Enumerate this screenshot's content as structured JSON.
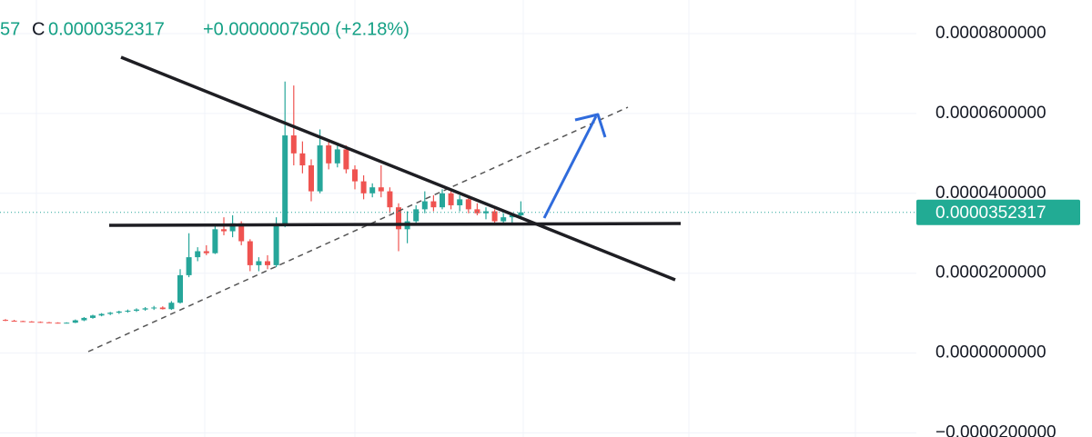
{
  "chart_data": {
    "type": "candlestick",
    "header_symbol_fragment": "57",
    "header_close_prefix": "C",
    "header_close": "0.0000352317",
    "header_change": "+0.0000007500 (+2.18%)",
    "up_color": "#26a69a",
    "down_color": "#ef5350",
    "grid": true,
    "ylim": [
      -2.10227e-05,
      8.84091e-05
    ],
    "yticks": [
      {
        "value": 8e-05,
        "label": "0.0000800000"
      },
      {
        "value": 6e-05,
        "label": "0.0000600000"
      },
      {
        "value": 4e-05,
        "label": "0.0000400000"
      },
      {
        "value": 2e-05,
        "label": "0.0000200000"
      },
      {
        "value": 0,
        "label": "0.0000000000"
      },
      {
        "value": -2e-05,
        "label": "−0.0000200000"
      }
    ],
    "last_price": {
      "value": 3.52317e-05,
      "label": "0.0000352317"
    },
    "open": [
      8.3e-06,
      8.1e-06,
      8e-06,
      7.9e-06,
      7.8e-06,
      7.7e-06,
      7.6e-06,
      7.5e-06,
      7.6e-06,
      8.2e-06,
      8.8e-06,
      9.4e-06,
      9.8e-06,
      1.01e-05,
      1.04e-05,
      1.06e-05,
      1.09e-05,
      1.12e-05,
      1.14e-05,
      1.1e-05,
      1.26e-05,
      1.95e-05,
      2.4e-05,
      2.55e-05,
      2.5e-05,
      3.1e-05,
      3.05e-05,
      3.25e-05,
      2.8e-05,
      2.2e-05,
      2.3e-05,
      2.2e-05,
      3.2e-05,
      5.45e-05,
      5e-05,
      4.7e-05,
      4.05e-05,
      5.2e-05,
      4.75e-05,
      5.1e-05,
      4.6e-05,
      4.3e-05,
      4e-05,
      4.15e-05,
      4.05e-05,
      3.65e-05,
      3.1e-05,
      3.3e-05,
      3.6e-05,
      3.8e-05,
      3.65e-05,
      4e-05,
      3.7e-05,
      3.85e-05,
      3.6e-05,
      3.5e-05,
      3.55e-05,
      3.3e-05,
      3.4e-05,
      3.44817e-05
    ],
    "high": [
      8.5e-06,
      8.3e-06,
      8.1e-06,
      8e-06,
      7.9e-06,
      7.8e-06,
      7.7e-06,
      7.7e-06,
      8.4e-06,
      9e-06,
      9.6e-06,
      1e-05,
      1.03e-05,
      1.06e-05,
      1.09e-05,
      1.12e-05,
      1.15e-05,
      1.18e-05,
      1.17e-05,
      1.3e-05,
      2.1e-05,
      3e-05,
      2.65e-05,
      2.7e-05,
      3.2e-05,
      3.4e-05,
      3.45e-05,
      3.3e-05,
      2.85e-05,
      2.4e-05,
      2.45e-05,
      3.4e-05,
      6.8e-05,
      6.7e-05,
      5.3e-05,
      4.85e-05,
      5.6e-05,
      5.35e-05,
      5.25e-05,
      5.2e-05,
      4.7e-05,
      4.45e-05,
      4.25e-05,
      4.7e-05,
      4.15e-05,
      3.75e-05,
      3.55e-05,
      3.7e-05,
      4.05e-05,
      3.95e-05,
      4.1e-05,
      4.05e-05,
      3.95e-05,
      3.88e-05,
      3.75e-05,
      3.65e-05,
      3.6e-05,
      3.5e-05,
      3.45e-05,
      3.8e-05
    ],
    "low": [
      8e-06,
      7.9e-06,
      7.8e-06,
      7.7e-06,
      7.6e-06,
      7.5e-06,
      7.4e-06,
      7.4e-06,
      7.5e-06,
      8e-06,
      8.6e-06,
      9.2e-06,
      9.5e-06,
      9.8e-06,
      1.01e-05,
      1.03e-05,
      1.06e-05,
      1.08e-05,
      1.09e-05,
      1.08e-05,
      1.24e-05,
      1.9e-05,
      2.3e-05,
      2.45e-05,
      2.48e-05,
      2.95e-05,
      2.9e-05,
      2.7e-05,
      2.05e-05,
      2.05e-05,
      2.1e-05,
      2.15e-05,
      3.15e-05,
      4.7e-05,
      4.5e-05,
      3.8e-05,
      4e-05,
      4.6e-05,
      4.65e-05,
      4.5e-05,
      4.1e-05,
      3.85e-05,
      3.9e-05,
      3.9e-05,
      3.5e-05,
      2.55e-05,
      2.75e-05,
      3.2e-05,
      3.5e-05,
      3.55e-05,
      3.6e-05,
      3.6e-05,
      3.55e-05,
      3.5e-05,
      3.45e-05,
      3.35e-05,
      3.25e-05,
      3.2e-05,
      3.25e-05,
      3.38e-05
    ],
    "close": [
      8.1e-06,
      8e-06,
      7.9e-06,
      7.8e-06,
      7.7e-06,
      7.6e-06,
      7.5e-06,
      7.6e-06,
      8.2e-06,
      8.8e-06,
      9.4e-06,
      9.8e-06,
      1.01e-05,
      1.04e-05,
      1.06e-05,
      1.09e-05,
      1.12e-05,
      1.14e-05,
      1.1e-05,
      1.26e-05,
      1.95e-05,
      2.4e-05,
      2.55e-05,
      2.5e-05,
      3.1e-05,
      3.05e-05,
      3.25e-05,
      2.8e-05,
      2.2e-05,
      2.3e-05,
      2.2e-05,
      3.2e-05,
      5.45e-05,
      5e-05,
      4.7e-05,
      4.05e-05,
      5.2e-05,
      4.75e-05,
      5.1e-05,
      4.6e-05,
      4.3e-05,
      4e-05,
      4.15e-05,
      4.05e-05,
      3.65e-05,
      3.1e-05,
      3.3e-05,
      3.6e-05,
      3.8e-05,
      3.65e-05,
      4e-05,
      3.7e-05,
      3.85e-05,
      3.6e-05,
      3.5e-05,
      3.55e-05,
      3.3e-05,
      3.4e-05,
      3.44817e-05,
      3.52317e-05
    ]
  }
}
